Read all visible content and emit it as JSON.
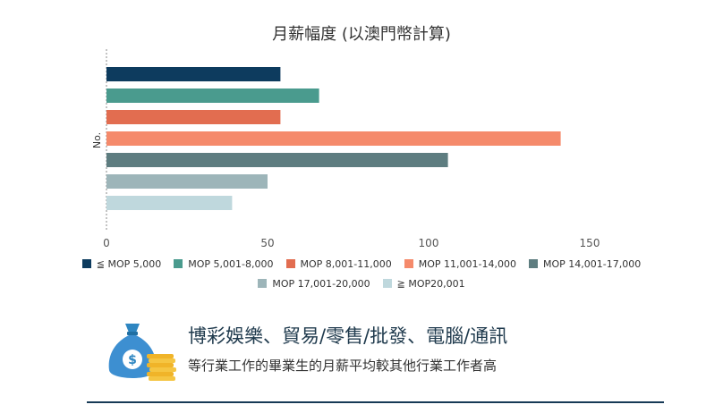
{
  "chart_data": {
    "type": "bar",
    "orientation": "horizontal",
    "title": "月薪幅度 (以澳門幣計算)",
    "ylabel": "No.",
    "xlim": [
      0,
      150
    ],
    "xticks": [
      0,
      50,
      100,
      150
    ],
    "grid": false,
    "legend_position": "bottom",
    "series": [
      {
        "name": "≦ MOP 5,000",
        "value": 54,
        "color": "#0d3b5e"
      },
      {
        "name": "MOP 5,001-8,000",
        "value": 66,
        "color": "#4a9b8e"
      },
      {
        "name": "MOP 8,001-11,000",
        "value": 54,
        "color": "#e26d50"
      },
      {
        "name": "MOP 11,001-14,000",
        "value": 141,
        "color": "#f58a6b"
      },
      {
        "name": "MOP 14,001-17,000",
        "value": 106,
        "color": "#5e7d80"
      },
      {
        "name": "MOP 17,001-20,000",
        "value": 50,
        "color": "#9db5b9"
      },
      {
        "name": "≧ MOP20,001",
        "value": 39,
        "color": "#bfd8dd"
      }
    ]
  },
  "footer": {
    "headline": "博彩娛樂、貿易/零售/批發、電腦/通訊",
    "subline": "等行業工作的畢業生的月薪平均較其他行業工作者高"
  },
  "icons": {
    "bag": "money-bag-icon",
    "coins": "coin-stack-icon"
  }
}
